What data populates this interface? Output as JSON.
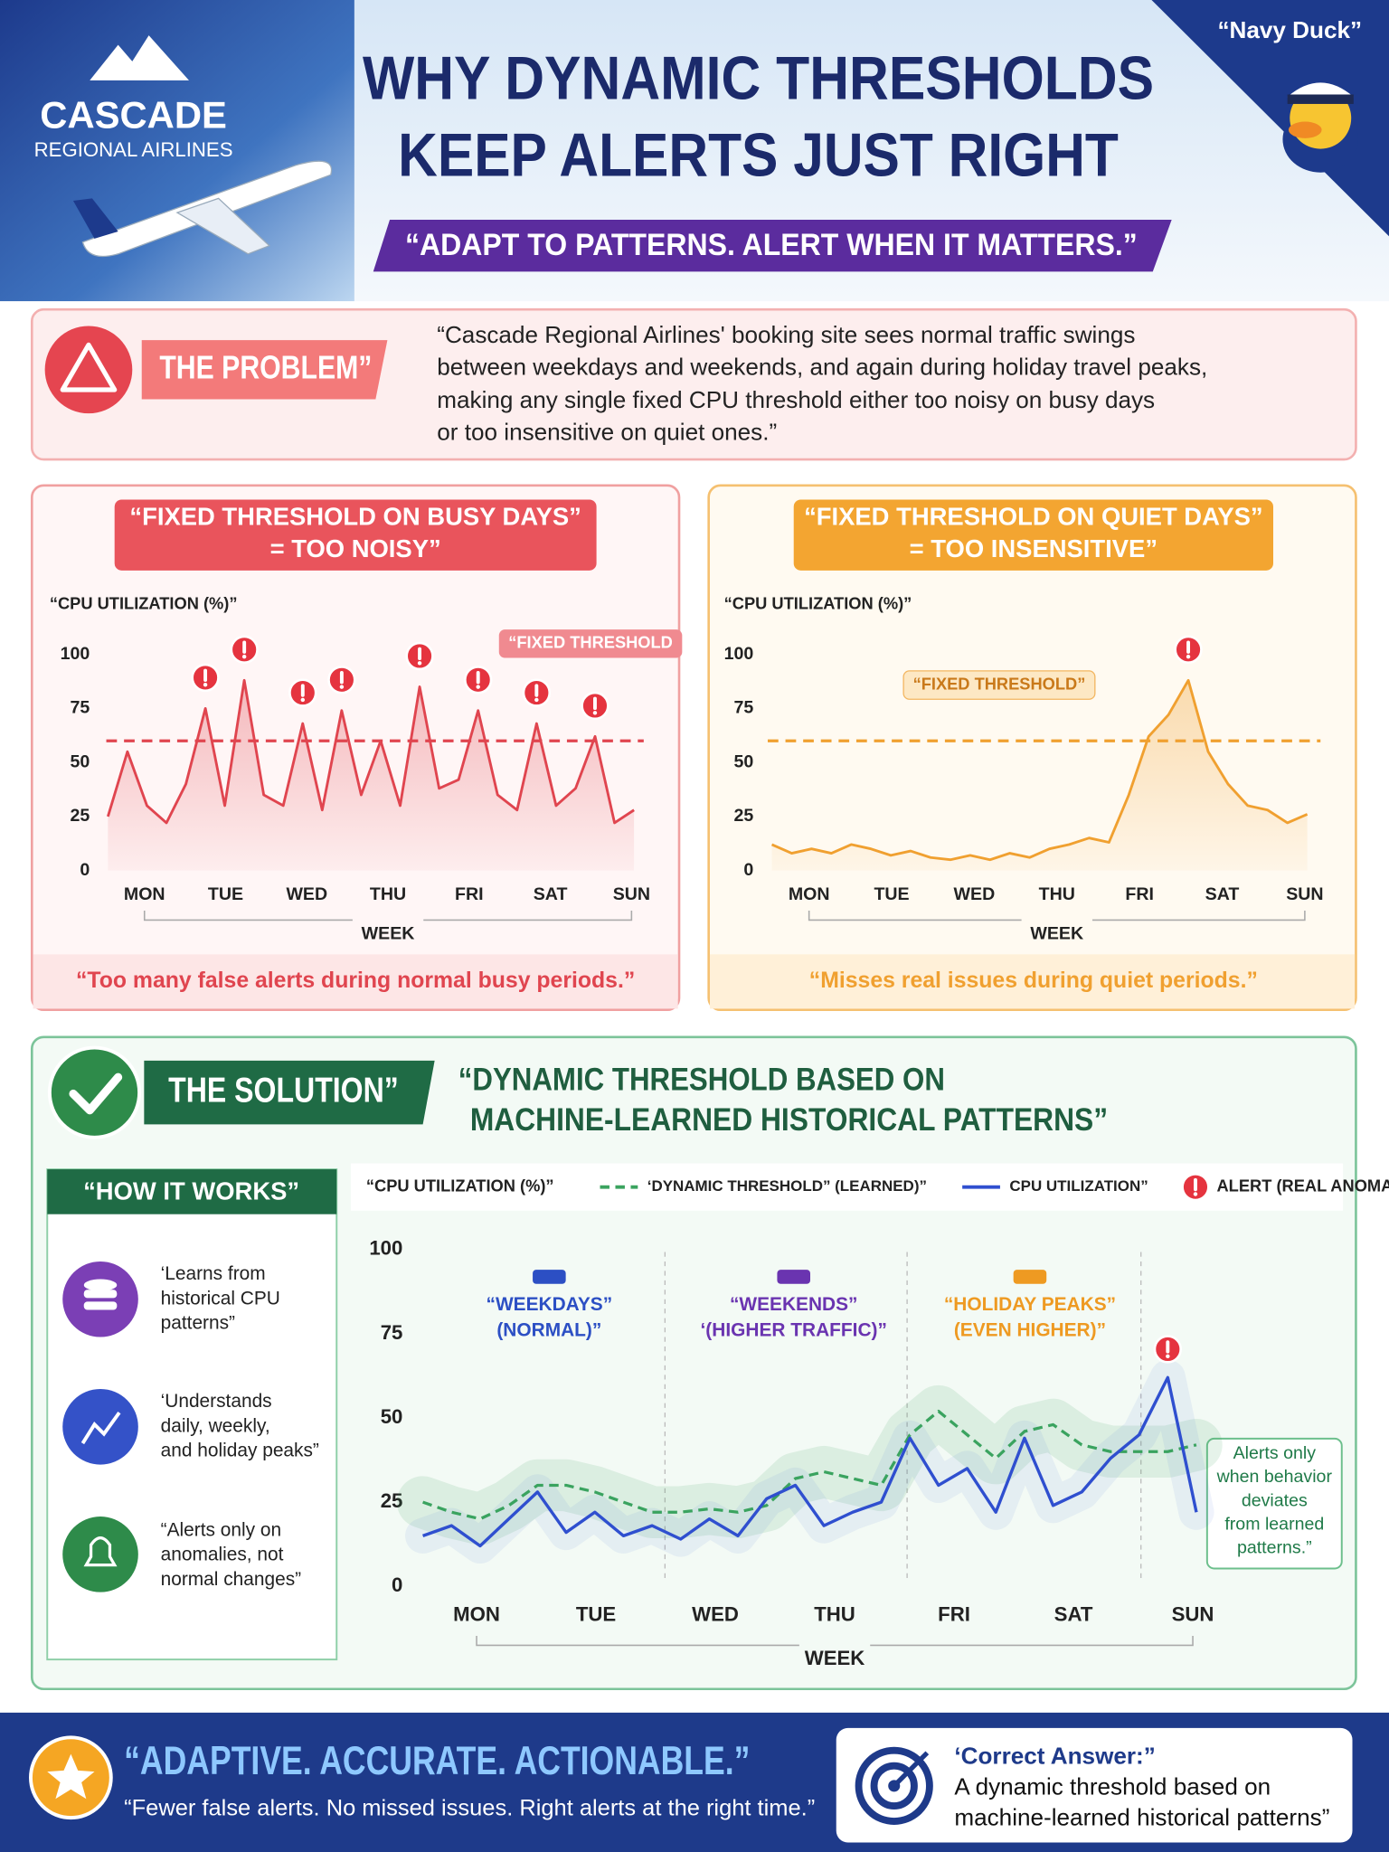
{
  "header": {
    "brand": "CASCADE",
    "brand_sub": "REGIONAL AIRLINES",
    "mascot": "“Navy Duck”",
    "title": [
      "WHY DYNAMIC THRESHOLDS",
      "KEEP ALERTS JUST RIGHT"
    ],
    "tagline": "“ADAPT TO PATTERNS. ALERT WHEN IT MATTERS.”"
  },
  "problem": {
    "label": "THE PROBLEM”",
    "text": [
      "“Cascade Regional Airlines' booking site sees normal traffic swings",
      "between weekdays and weekends, and again during holiday travel peaks,",
      "making any single fixed CPU threshold either too noisy on busy days",
      "or too insensitive on quiet ones.”"
    ]
  },
  "chart_data": [
    {
      "type": "line",
      "title": [
        "“FIXED THRESHOLD ON BUSY DAYS”",
        "= TOO NOISY”"
      ],
      "y_label": "“CPU UTILIZATION (%)”",
      "x_label": "WEEK",
      "threshold": 60,
      "threshold_label": "“FIXED THRESHOLD",
      "caption": "“Too many false alerts during normal busy periods.”",
      "color": "#e0454f",
      "x": [
        -0.45,
        -0.21,
        0.03,
        0.27,
        0.51,
        0.75,
        0.99,
        1.23,
        1.47,
        1.71,
        1.95,
        2.19,
        2.43,
        2.67,
        2.91,
        3.15,
        3.39,
        3.63,
        3.87,
        4.11,
        4.35,
        4.59,
        4.83,
        5.07,
        5.31,
        5.55,
        5.79,
        6.03
      ],
      "values": [
        25,
        55,
        30,
        22,
        40,
        75,
        30,
        88,
        35,
        30,
        68,
        28,
        74,
        35,
        60,
        30,
        85,
        38,
        42,
        74,
        35,
        28,
        68,
        30,
        38,
        62,
        22,
        28
      ],
      "xlim": [
        -0.47,
        6.15
      ],
      "ylim": [
        0,
        100
      ],
      "xticks": [
        {
          "value": 0,
          "label": "MON"
        },
        {
          "value": 1,
          "label": "TUE"
        },
        {
          "value": 2,
          "label": "WED"
        },
        {
          "value": 3,
          "label": "THU"
        },
        {
          "value": 4,
          "label": "FRI"
        },
        {
          "value": 5,
          "label": "SAT"
        },
        {
          "value": 6,
          "label": "SUN"
        }
      ],
      "yticks": [
        0,
        25,
        50,
        75,
        100
      ],
      "grid": false
    },
    {
      "type": "line",
      "title": [
        "“FIXED THRESHOLD ON QUIET DAYS”",
        "= TOO INSENSITIVE”"
      ],
      "y_label": "“CPU UTILIZATION (%)”",
      "x_label": "WEEK",
      "threshold": 60,
      "threshold_label": "“FIXED THRESHOLD”",
      "caption": "“Misses real issues during quiet periods.”",
      "color": "#f0a030",
      "x": [
        -0.45,
        -0.21,
        0.03,
        0.27,
        0.51,
        0.75,
        0.99,
        1.23,
        1.47,
        1.71,
        1.95,
        2.19,
        2.43,
        2.67,
        2.91,
        3.15,
        3.39,
        3.63,
        3.87,
        4.11,
        4.35,
        4.59,
        4.83,
        5.07,
        5.31,
        5.55,
        5.79,
        6.03
      ],
      "values": [
        12,
        8,
        10,
        8,
        12,
        10,
        7,
        9,
        6,
        5,
        7,
        5,
        8,
        6,
        10,
        12,
        15,
        13,
        35,
        62,
        72,
        88,
        55,
        40,
        30,
        28,
        22,
        26
      ],
      "xlim": [
        -0.5,
        6.19
      ],
      "ylim": [
        0,
        100
      ],
      "xticks": [
        {
          "value": 0,
          "label": "MON"
        },
        {
          "value": 1,
          "label": "TUE"
        },
        {
          "value": 2,
          "label": "WED"
        },
        {
          "value": 3,
          "label": "THU"
        },
        {
          "value": 4,
          "label": "FRI"
        },
        {
          "value": 5,
          "label": "SAT"
        },
        {
          "value": 6,
          "label": "SUN"
        }
      ],
      "yticks": [
        0,
        25,
        50,
        75,
        100
      ],
      "grid": false
    },
    {
      "type": "line",
      "y_label": "“CPU UTILIZATION (%)”",
      "x_label": "WEEK",
      "alert_label": "ALERT (REAL ANOMALY)”",
      "x": [
        -0.45,
        -0.21,
        0.03,
        0.27,
        0.51,
        0.75,
        0.99,
        1.23,
        1.47,
        1.71,
        1.95,
        2.19,
        2.43,
        2.67,
        2.91,
        3.15,
        3.39,
        3.63,
        3.87,
        4.11,
        4.35,
        4.59,
        4.83,
        5.07,
        5.31,
        5.55,
        5.79,
        6.03
      ],
      "series": [
        {
          "name": "‘DYNAMIC THRESHOLD” (LEARNED)”",
          "color": "#3aa35f",
          "dash": true,
          "values": [
            25,
            22,
            20,
            24,
            30,
            30,
            28,
            25,
            22,
            22,
            23,
            22,
            24,
            32,
            34,
            32,
            30,
            45,
            52,
            45,
            38,
            46,
            48,
            42,
            40,
            40,
            40,
            42
          ]
        },
        {
          "name": "CPU UTILIZATION”",
          "color": "#2f4fcf",
          "dash": false,
          "values": [
            15,
            18,
            12,
            20,
            28,
            16,
            22,
            15,
            18,
            14,
            20,
            15,
            26,
            30,
            18,
            22,
            25,
            44,
            30,
            35,
            22,
            44,
            24,
            28,
            38,
            45,
            62,
            22
          ]
        }
      ],
      "regions": [
        {
          "lines": [
            "“WEEKDAYS”",
            "(NORMAL)”"
          ],
          "color": "#2c4fc4"
        },
        {
          "lines": [
            "“WEEKENDS”",
            "‘(HIGHER TRAFFIC)”"
          ],
          "color": "#6a34b0"
        },
        {
          "lines": [
            "“HOLIDAY PEAKS”",
            "(EVEN HIGHER)”"
          ],
          "color": "#ee9a22"
        }
      ],
      "annotation": [
        "Alerts only",
        "when behavior",
        "deviates",
        "from learned",
        "patterns.”"
      ],
      "xlim": [
        -0.48,
        6.1
      ],
      "ylim": [
        0,
        100
      ],
      "xticks": [
        {
          "value": 0,
          "label": "MON"
        },
        {
          "value": 1,
          "label": "TUE"
        },
        {
          "value": 2,
          "label": "WED"
        },
        {
          "value": 3,
          "label": "THU"
        },
        {
          "value": 4,
          "label": "FRI"
        },
        {
          "value": 5,
          "label": "SAT"
        },
        {
          "value": 6,
          "label": "SUN"
        }
      ],
      "yticks": [
        0,
        25,
        50,
        75,
        100
      ],
      "grid": false
    }
  ],
  "solution": {
    "label": "THE SOLUTION”",
    "heading": [
      "“DYNAMIC THRESHOLD BASED ON",
      "MACHINE-LEARNED HISTORICAL PATTERNS”"
    ],
    "how_title": "“HOW IT WORKS”",
    "items": [
      [
        "‘Learns from",
        "historical CPU",
        "patterns”"
      ],
      [
        "‘Understands",
        "daily, weekly,",
        "and holiday peaks”"
      ],
      [
        "“Alerts only on",
        "anomalies, not",
        "normal changes”"
      ]
    ]
  },
  "footer": {
    "slogan": "“ADAPTIVE. ACCURATE. ACTIONABLE.”",
    "sub": "“Fewer false alerts. No missed issues. Right alerts at the right time.”",
    "answer_label": "‘Correct Answer:”",
    "answer": [
      "A dynamic threshold based on",
      "machine-learned historical patterns”"
    ]
  }
}
